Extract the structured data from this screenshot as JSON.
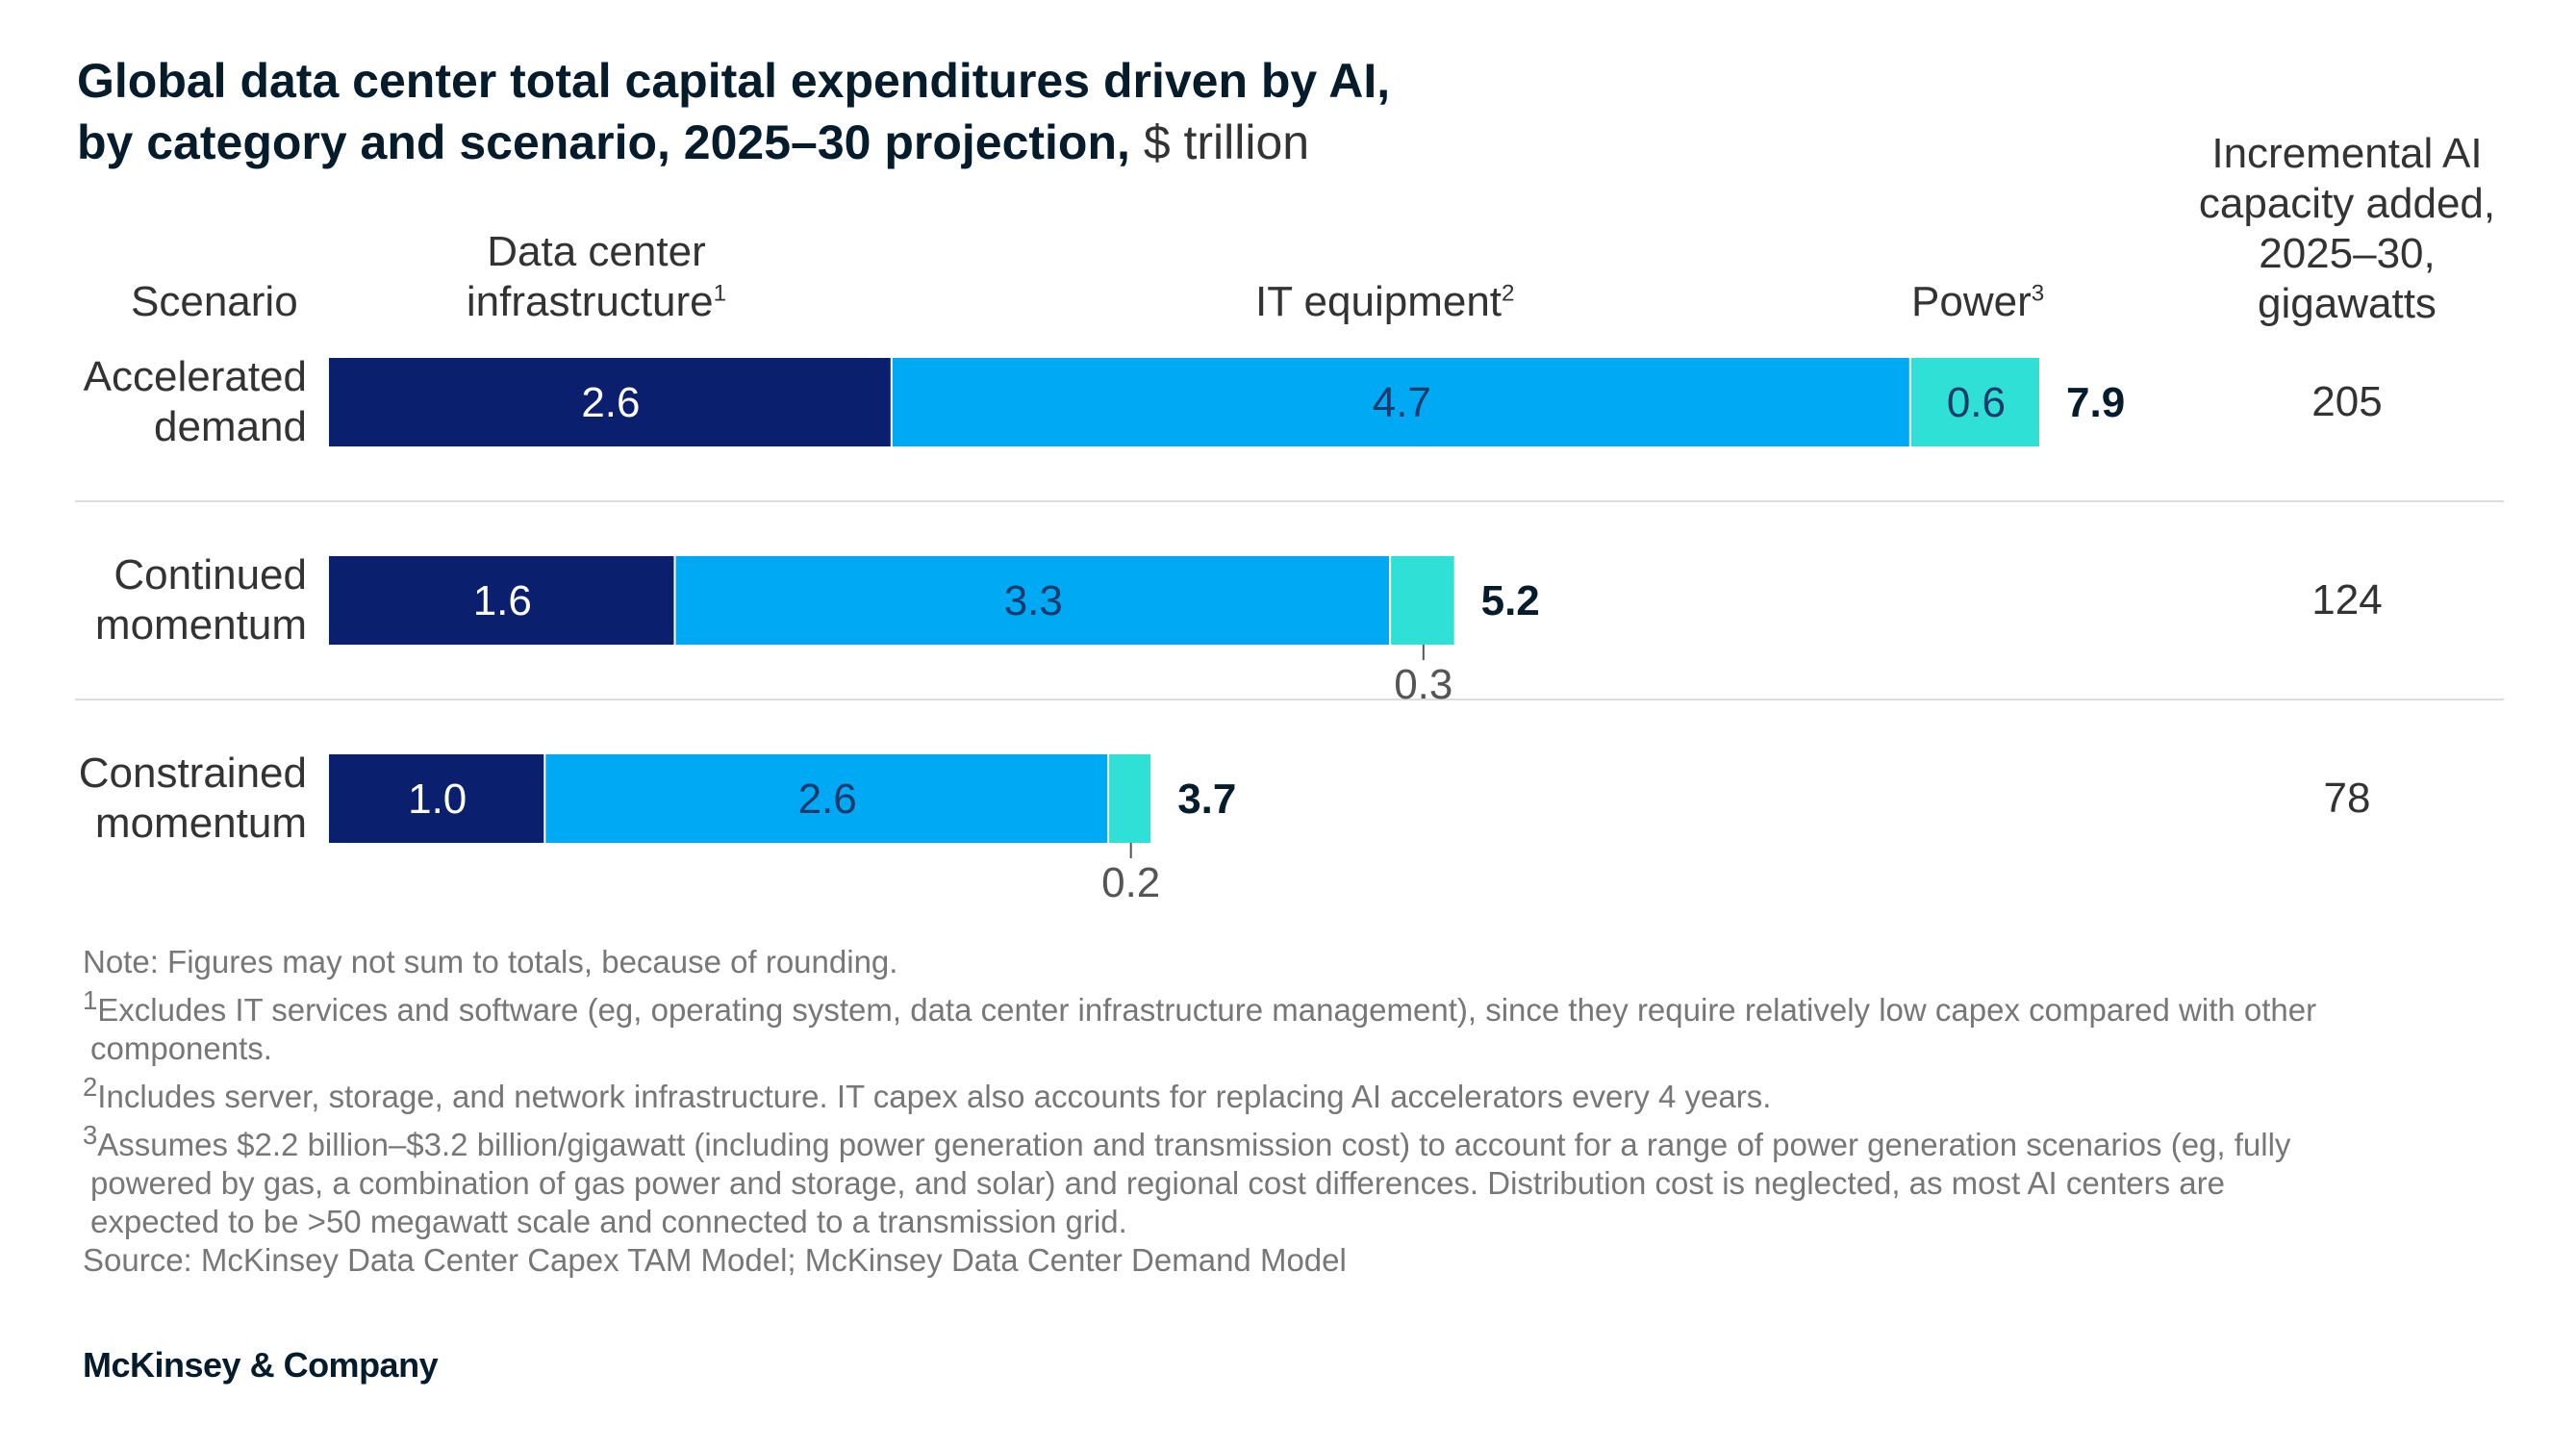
{
  "title": {
    "line1": "Global data center total capital expenditures driven by AI,",
    "line2": "by category and scenario, 2025–30 projection,",
    "unit": "$ trillion"
  },
  "headers": {
    "scenario": "Scenario",
    "infra_line1": "Data center",
    "infra_line2": "infrastructure",
    "infra_sup": "1",
    "it": "IT equipment",
    "it_sup": "2",
    "power": "Power",
    "power_sup": "3",
    "capacity_line1": "Incremental AI",
    "capacity_line2": "capacity added,",
    "capacity_line3": "2025–30,",
    "capacity_line4": "gigawatts"
  },
  "rows": [
    {
      "scenario_line1": "Accelerated",
      "scenario_line2": "demand",
      "total": "7.9",
      "capacity": "205"
    },
    {
      "scenario_line1": "Continued",
      "scenario_line2": "momentum",
      "total": "5.2",
      "capacity": "124"
    },
    {
      "scenario_line1": "Constrained",
      "scenario_line2": "momentum",
      "total": "3.7",
      "capacity": "78"
    }
  ],
  "chart_data": {
    "type": "bar",
    "orientation": "horizontal",
    "stacked": true,
    "categories": [
      "Accelerated demand",
      "Continued momentum",
      "Constrained momentum"
    ],
    "series": [
      {
        "name": "Data center infrastructure",
        "values": [
          2.6,
          1.6,
          1.0
        ],
        "color": "#0b1f6f"
      },
      {
        "name": "IT equipment",
        "values": [
          4.7,
          3.3,
          2.6
        ],
        "color": "#00a9f4"
      },
      {
        "name": "Power",
        "values": [
          0.6,
          0.3,
          0.2
        ],
        "color": "#2ee0d5"
      }
    ],
    "totals": [
      7.9,
      5.2,
      3.7
    ],
    "capacity_gw": [
      205,
      124,
      78
    ],
    "labels": [
      [
        "2.6",
        "4.7",
        "0.6"
      ],
      [
        "1.6",
        "3.3",
        "0.3"
      ],
      [
        "1.0",
        "2.6",
        "0.2"
      ]
    ],
    "label_colors": [
      "#ffffff",
      "#1a3a6b",
      "#1a3a6b"
    ],
    "xlim": [
      0,
      8
    ],
    "grid": false,
    "legend": "top (column headers)"
  },
  "notes": {
    "note": "Note: Figures may not sum to totals, because of rounding.",
    "fn1_mark": "1",
    "fn1_line1": "Excludes IT services and software (eg, operating system, data center infrastructure management), since they require relatively low capex compared with other",
    "fn1_line2": "components.",
    "fn2_mark": "2",
    "fn2": "Includes server, storage, and network infrastructure. IT capex also accounts for replacing AI accelerators every 4 years.",
    "fn3_mark": "3",
    "fn3_line1": "Assumes $2.2 billion–$3.2 billion/gigawatt (including power generation and transmission cost) to account for a range of power generation scenarios (eg, fully",
    "fn3_line2": "powered by gas, a combination of gas power and storage, and solar) and regional cost differences. Distribution cost is neglected, as most AI centers are",
    "fn3_line3": "expected to be >50 megawatt scale and connected to a transmission grid.",
    "source": "Source: McKinsey Data Center Capex TAM Model; McKinsey Data Center Demand Model"
  },
  "brand": "McKinsey & Company"
}
